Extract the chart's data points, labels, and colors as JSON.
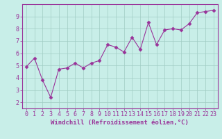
{
  "x": [
    0,
    1,
    2,
    3,
    4,
    5,
    6,
    7,
    8,
    9,
    10,
    11,
    12,
    13,
    14,
    15,
    16,
    17,
    18,
    19,
    20,
    21,
    22,
    23
  ],
  "y": [
    4.9,
    5.6,
    3.8,
    2.4,
    4.7,
    4.8,
    5.2,
    4.8,
    5.2,
    5.4,
    6.7,
    6.5,
    6.1,
    7.3,
    6.3,
    8.5,
    6.7,
    7.9,
    8.0,
    7.9,
    8.4,
    9.3,
    9.4,
    9.5
  ],
  "line_color": "#993399",
  "marker": "D",
  "marker_size": 2.5,
  "bg_color": "#c8eee8",
  "grid_color": "#a0ccc4",
  "xlabel": "Windchill (Refroidissement éolien,°C)",
  "xlabel_fontsize": 6.5,
  "tick_fontsize": 6.0,
  "ylim": [
    1.5,
    10.0
  ],
  "xlim": [
    -0.5,
    23.5
  ],
  "yticks": [
    2,
    3,
    4,
    5,
    6,
    7,
    8,
    9
  ],
  "xticks": [
    0,
    1,
    2,
    3,
    4,
    5,
    6,
    7,
    8,
    9,
    10,
    11,
    12,
    13,
    14,
    15,
    16,
    17,
    18,
    19,
    20,
    21,
    22,
    23
  ]
}
